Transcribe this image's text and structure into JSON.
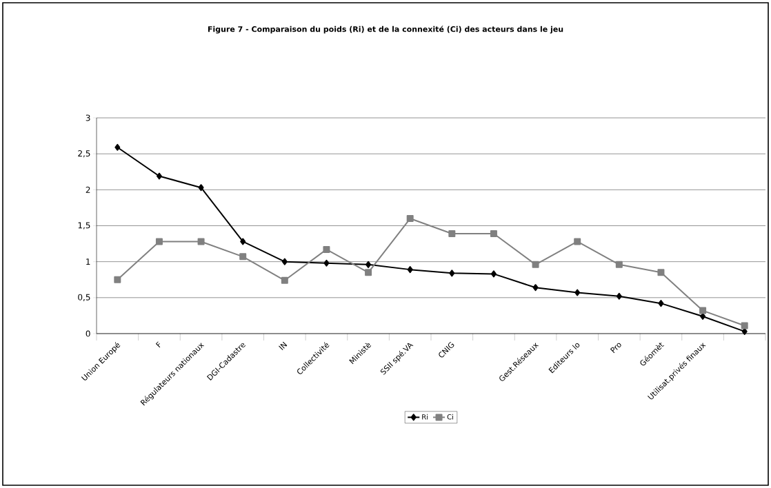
{
  "chart_data": {
    "type": "line",
    "title": "Figure 7 - Comparaison du poids (Ri) et de la connexité (Ci) des acteurs dans le jeu",
    "categories": [
      "Union Europé",
      "F",
      "Régulateurs nationaux",
      "DGI-Cadastre",
      "IN",
      "Collectivité",
      "Ministè",
      "SSII spé.VA",
      "CNIG",
      null,
      "Gest.Réseaux",
      "Editeurs lo",
      "Pro",
      "Géomèt",
      "Utilisat.privés finaux",
      null
    ],
    "series": [
      {
        "name": "Ri",
        "color": "#000000",
        "marker": "diamond",
        "values": [
          2.59,
          2.19,
          2.03,
          1.28,
          1.0,
          0.98,
          0.96,
          0.89,
          0.84,
          0.83,
          0.64,
          0.57,
          0.52,
          0.42,
          0.24,
          0.03
        ]
      },
      {
        "name": "Ci",
        "color": "#808080",
        "marker": "square",
        "values": [
          0.75,
          1.28,
          1.28,
          1.07,
          0.74,
          1.17,
          0.85,
          1.6,
          1.39,
          1.39,
          0.96,
          1.28,
          0.96,
          0.85,
          0.32,
          0.11
        ]
      }
    ],
    "ylim": [
      0,
      3
    ],
    "yticks": [
      0,
      {
        "value": 0.5,
        "label": "0,5"
      },
      1,
      {
        "value": 1.5,
        "label": "1,5"
      },
      2,
      {
        "value": 2.5,
        "label": "2,5"
      },
      3
    ],
    "grid": "y",
    "legend": "bottom",
    "line_style": "solid"
  }
}
